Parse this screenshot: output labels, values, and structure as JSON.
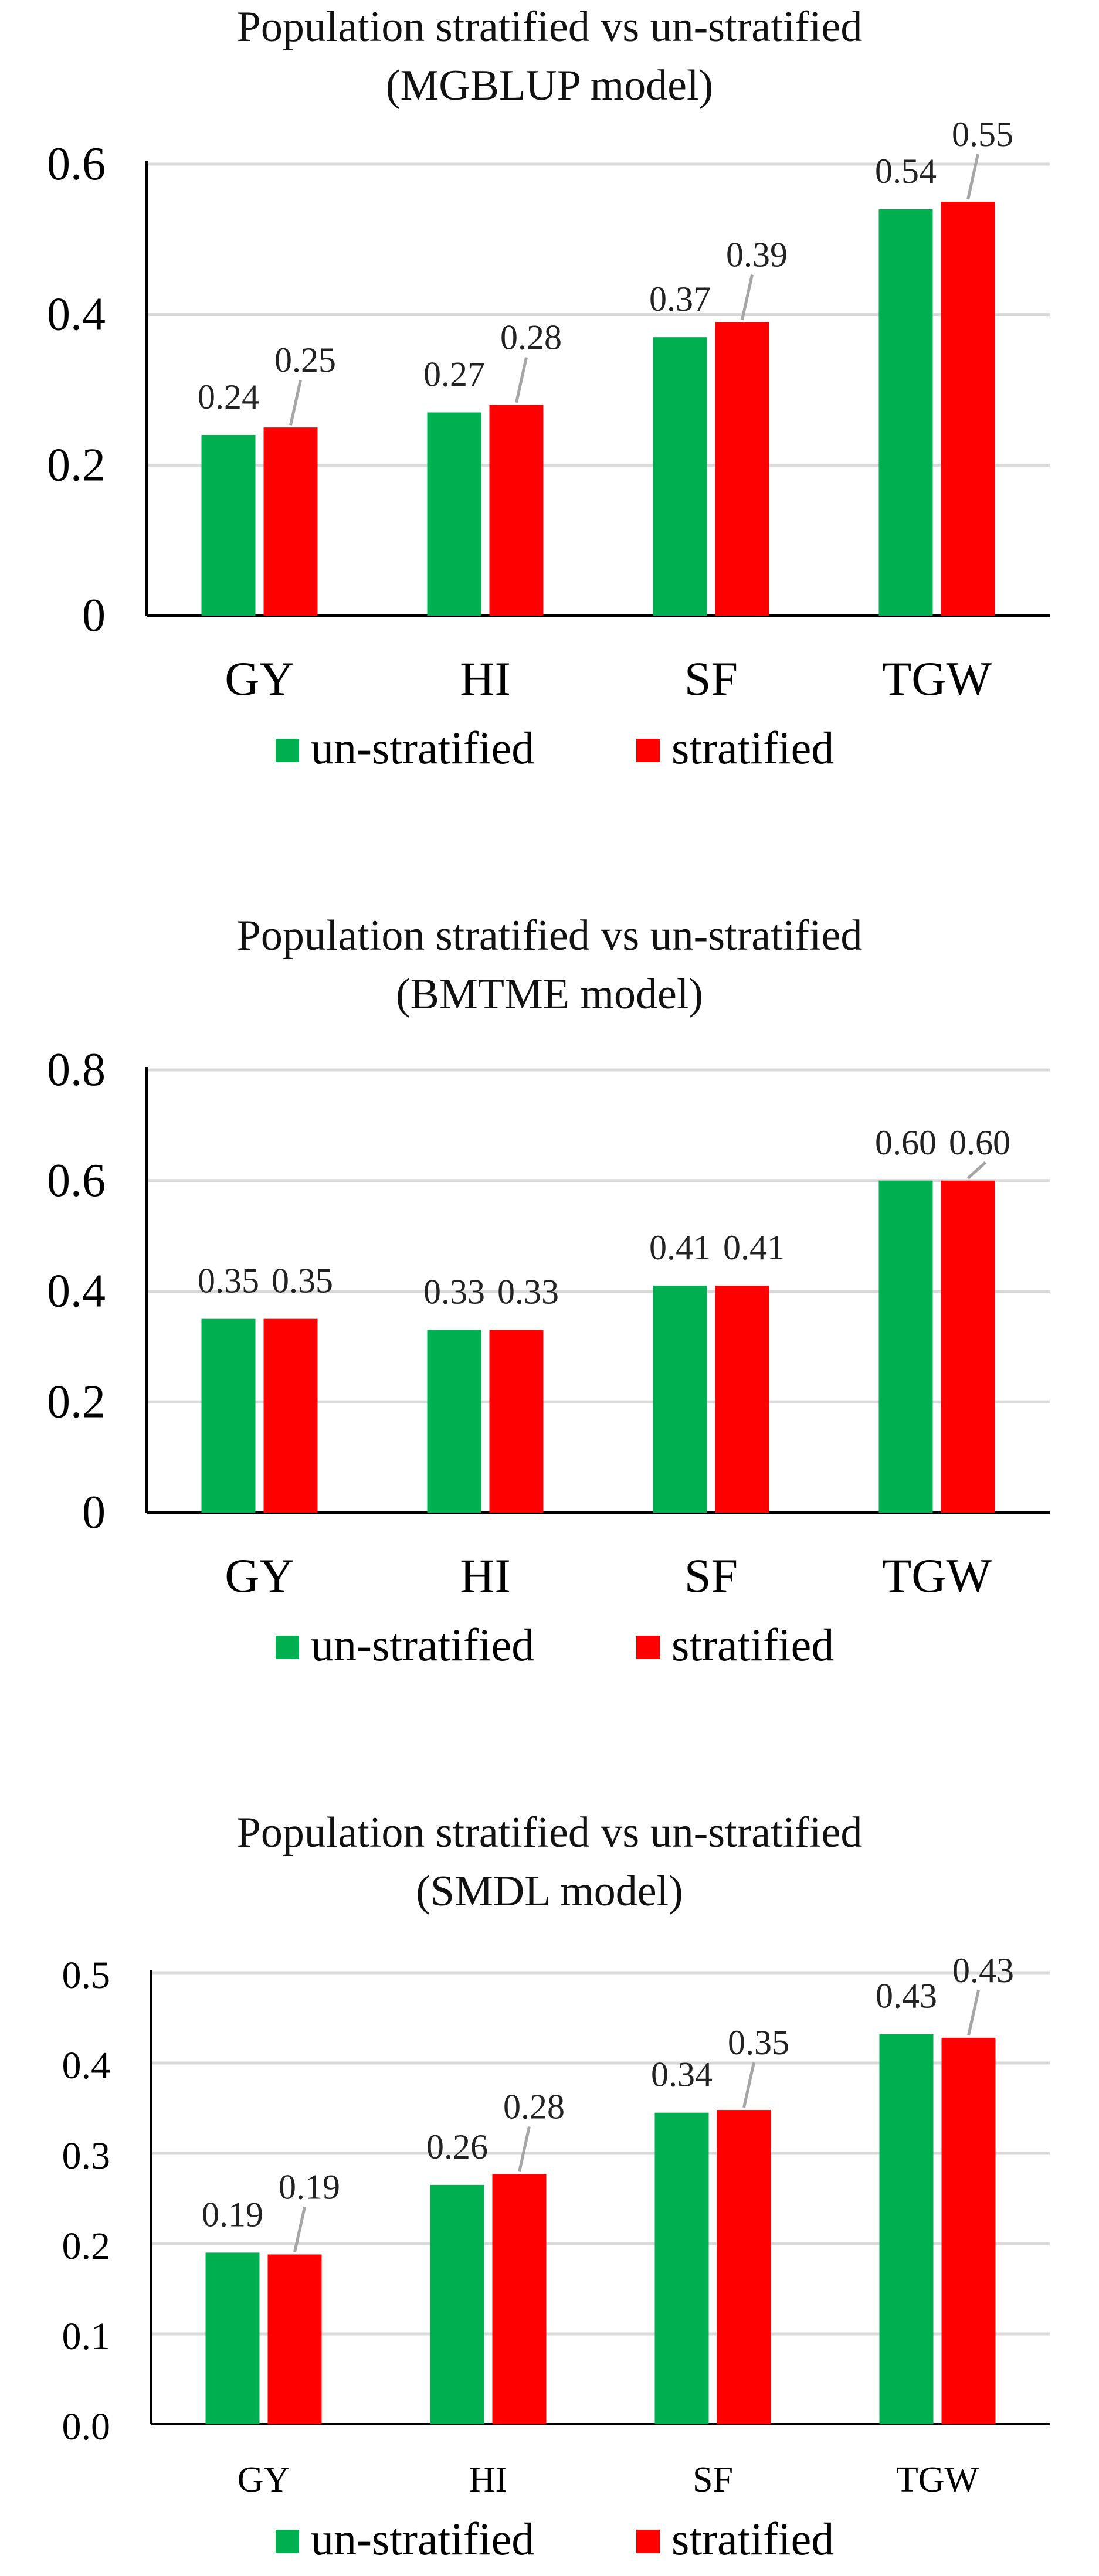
{
  "chart_data": [
    {
      "type": "bar",
      "title": "Population stratified vs un-stratified",
      "subtitle": "(MGBLUP model)",
      "categories": [
        "GY",
        "HI",
        "SF",
        "TGW"
      ],
      "series": [
        {
          "name": "un-stratified",
          "color": "#00b050",
          "values": [
            0.24,
            0.27,
            0.37,
            0.54
          ]
        },
        {
          "name": "stratified",
          "color": "#ff0000",
          "values": [
            0.25,
            0.28,
            0.39,
            0.55
          ]
        }
      ],
      "data_labels": [
        [
          "0.24",
          "0.27",
          "0.37",
          "0.54"
        ],
        [
          "0.25",
          "0.28",
          "0.39",
          "0.55"
        ]
      ],
      "ylim": [
        0,
        0.6
      ],
      "yticks": [
        "0",
        "0.2",
        "0.4",
        "0.6"
      ],
      "ytick_values": [
        0,
        0.2,
        0.4,
        0.6
      ],
      "grid": true,
      "legend": "bottom"
    },
    {
      "type": "bar",
      "title": "Population stratified vs un-stratified",
      "subtitle": "(BMTME model)",
      "categories": [
        "GY",
        "HI",
        "SF",
        "TGW"
      ],
      "series": [
        {
          "name": "un-stratified",
          "color": "#00b050",
          "values": [
            0.35,
            0.33,
            0.41,
            0.6
          ]
        },
        {
          "name": "stratified",
          "color": "#ff0000",
          "values": [
            0.35,
            0.33,
            0.41,
            0.6
          ]
        }
      ],
      "data_labels": [
        [
          "0.35",
          "0.33",
          "0.41",
          "0.60"
        ],
        [
          "0.35",
          "0.33",
          "0.41",
          "0.60"
        ]
      ],
      "ylim": [
        0,
        0.8
      ],
      "yticks": [
        "0",
        "0.2",
        "0.4",
        "0.6",
        "0.8"
      ],
      "ytick_values": [
        0,
        0.2,
        0.4,
        0.6,
        0.8
      ],
      "grid": true,
      "legend": "bottom"
    },
    {
      "type": "bar",
      "title": "Population stratified vs un-stratified",
      "subtitle": "(SMDL model)",
      "categories": [
        "GY",
        "HI",
        "SF",
        "TGW"
      ],
      "series": [
        {
          "name": "un-stratified",
          "color": "#00b050",
          "values": [
            0.19,
            0.265,
            0.345,
            0.432
          ]
        },
        {
          "name": "stratified",
          "color": "#ff0000",
          "values": [
            0.188,
            0.277,
            0.348,
            0.428
          ]
        }
      ],
      "data_labels": [
        [
          "0.19",
          "0.26",
          "0.34",
          "0.43"
        ],
        [
          "0.19",
          "0.28",
          "0.35",
          "0.43"
        ]
      ],
      "ylim": [
        0,
        0.5
      ],
      "yticks": [
        "0.0",
        "0.1",
        "0.2",
        "0.3",
        "0.4",
        "0.5"
      ],
      "ytick_values": [
        0,
        0.1,
        0.2,
        0.3,
        0.4,
        0.5
      ],
      "grid": true,
      "legend": "bottom"
    }
  ]
}
